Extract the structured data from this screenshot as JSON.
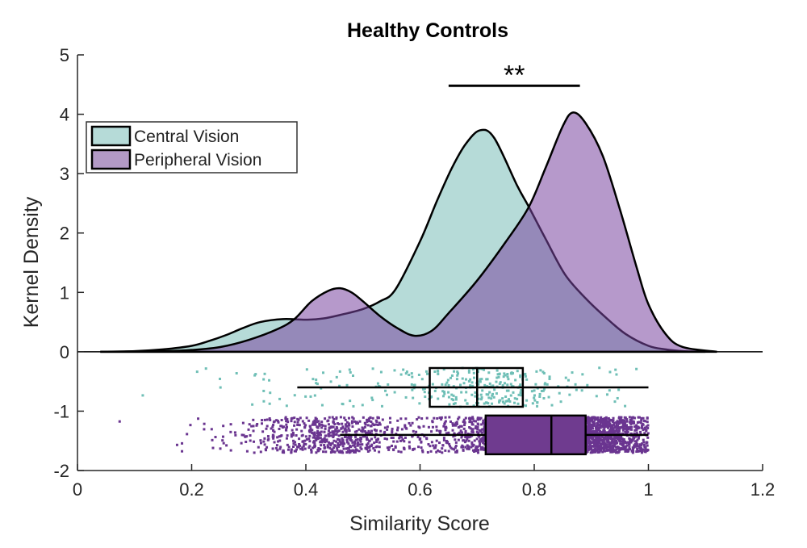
{
  "chart_data": {
    "type": "area",
    "title": "Healthy Controls",
    "xlabel": "Similarity Score",
    "ylabel": "Kernel Density",
    "xlim": [
      0,
      1.2
    ],
    "ylim": [
      -2,
      5
    ],
    "xticks": [
      "0",
      "0.2",
      "0.4",
      "0.6",
      "0.8",
      "1",
      "1.2"
    ],
    "yticks": [
      "-2",
      "-1",
      "0",
      "1",
      "2",
      "3",
      "4",
      "5"
    ],
    "grid": false,
    "legend_position": "top-left",
    "significance": {
      "label": "**",
      "x": [
        0.65,
        0.88
      ],
      "y": 4.48
    },
    "series": [
      {
        "name": "Central Vision",
        "fill": "#b6dbd8",
        "dot_color": "#6fbfb6",
        "x": [
          0.04,
          0.1,
          0.15,
          0.2,
          0.23,
          0.26,
          0.29,
          0.32,
          0.36,
          0.4,
          0.43,
          0.46,
          0.5,
          0.53,
          0.557,
          0.6,
          0.63,
          0.656,
          0.68,
          0.705,
          0.73,
          0.77,
          0.79,
          0.82,
          0.854,
          0.89,
          0.925,
          0.96,
          1.0,
          1.03,
          1.06,
          1.1
        ],
        "density": [
          0,
          0.01,
          0.04,
          0.1,
          0.18,
          0.28,
          0.4,
          0.5,
          0.55,
          0.54,
          0.56,
          0.62,
          0.72,
          0.85,
          1.05,
          1.86,
          2.55,
          3.1,
          3.5,
          3.73,
          3.6,
          2.8,
          2.45,
          1.9,
          1.3,
          0.9,
          0.58,
          0.3,
          0.1,
          0.04,
          0.01,
          0
        ],
        "boxplot": {
          "whisker_low": 0.385,
          "q1": 0.617,
          "median": 0.7,
          "q3": 0.78,
          "whisker_high": 1.0,
          "y": -0.6
        }
      },
      {
        "name": "Peripheral Vision",
        "fill": "#b39ac6",
        "dot_color": "#6a3590",
        "x": [
          0.04,
          0.15,
          0.2,
          0.25,
          0.3,
          0.35,
          0.38,
          0.41,
          0.44,
          0.46,
          0.48,
          0.5,
          0.53,
          0.56,
          0.59,
          0.62,
          0.65,
          0.7,
          0.75,
          0.79,
          0.82,
          0.85,
          0.868,
          0.89,
          0.92,
          0.95,
          0.98,
          1.0,
          1.03,
          1.06,
          1.12
        ],
        "density": [
          0,
          0.01,
          0.03,
          0.08,
          0.2,
          0.38,
          0.55,
          0.85,
          1.03,
          1.07,
          1.0,
          0.85,
          0.6,
          0.4,
          0.27,
          0.35,
          0.65,
          1.2,
          1.85,
          2.43,
          3.1,
          3.8,
          4.03,
          3.85,
          3.3,
          2.4,
          1.4,
          0.8,
          0.3,
          0.08,
          0
        ],
        "boxplot": {
          "whisker_low": 0.46,
          "q1": 0.715,
          "median": 0.83,
          "q3": 0.89,
          "whisker_high": 1.0,
          "y": -1.4
        }
      }
    ]
  }
}
